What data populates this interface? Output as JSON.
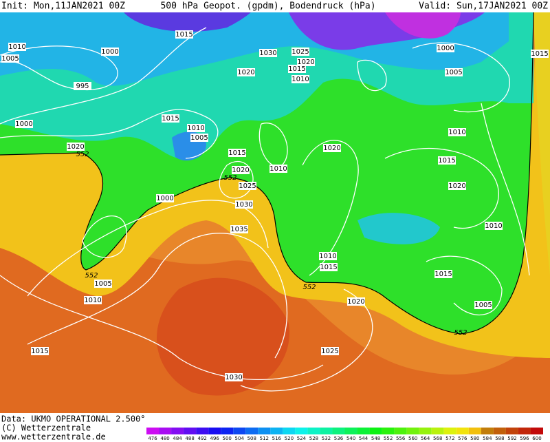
{
  "header": {
    "init": "Init: Mon,11JAN2021 00Z",
    "title": "500 hPa Geopot. (gpdm), Bodendruck (hPa)",
    "valid": "Valid: Sun,17JAN2021 00Z"
  },
  "map": {
    "isobar_labels": [
      1010,
      1005,
      1000,
      995,
      1015,
      1030,
      1025,
      1020,
      1015,
      1010,
      1020,
      1000,
      1005,
      1015,
      1000,
      1015,
      1010,
      1005,
      1020,
      1015,
      1010,
      1020,
      1025,
      1020,
      1010,
      1015,
      1020,
      1000,
      1030,
      1035,
      1010,
      1010,
      1015,
      1015,
      1005,
      1010,
      1020,
      1005,
      1015,
      1025,
      1030
    ],
    "contour_labels": [
      552,
      552,
      552,
      552,
      552
    ]
  },
  "legend": {
    "scale": [
      476,
      480,
      484,
      488,
      492,
      496,
      500,
      504,
      508,
      512,
      516,
      520,
      524,
      528,
      532,
      536,
      540,
      544,
      548,
      552,
      556,
      560,
      564,
      568,
      572,
      576,
      580,
      584,
      588,
      592,
      596,
      600
    ]
  },
  "footer": {
    "data": "Data: UKMO OPERATIONAL 2.500°",
    "copyright": "(C) Wetterzentrale",
    "url": "www.wetterzentrale.de"
  }
}
